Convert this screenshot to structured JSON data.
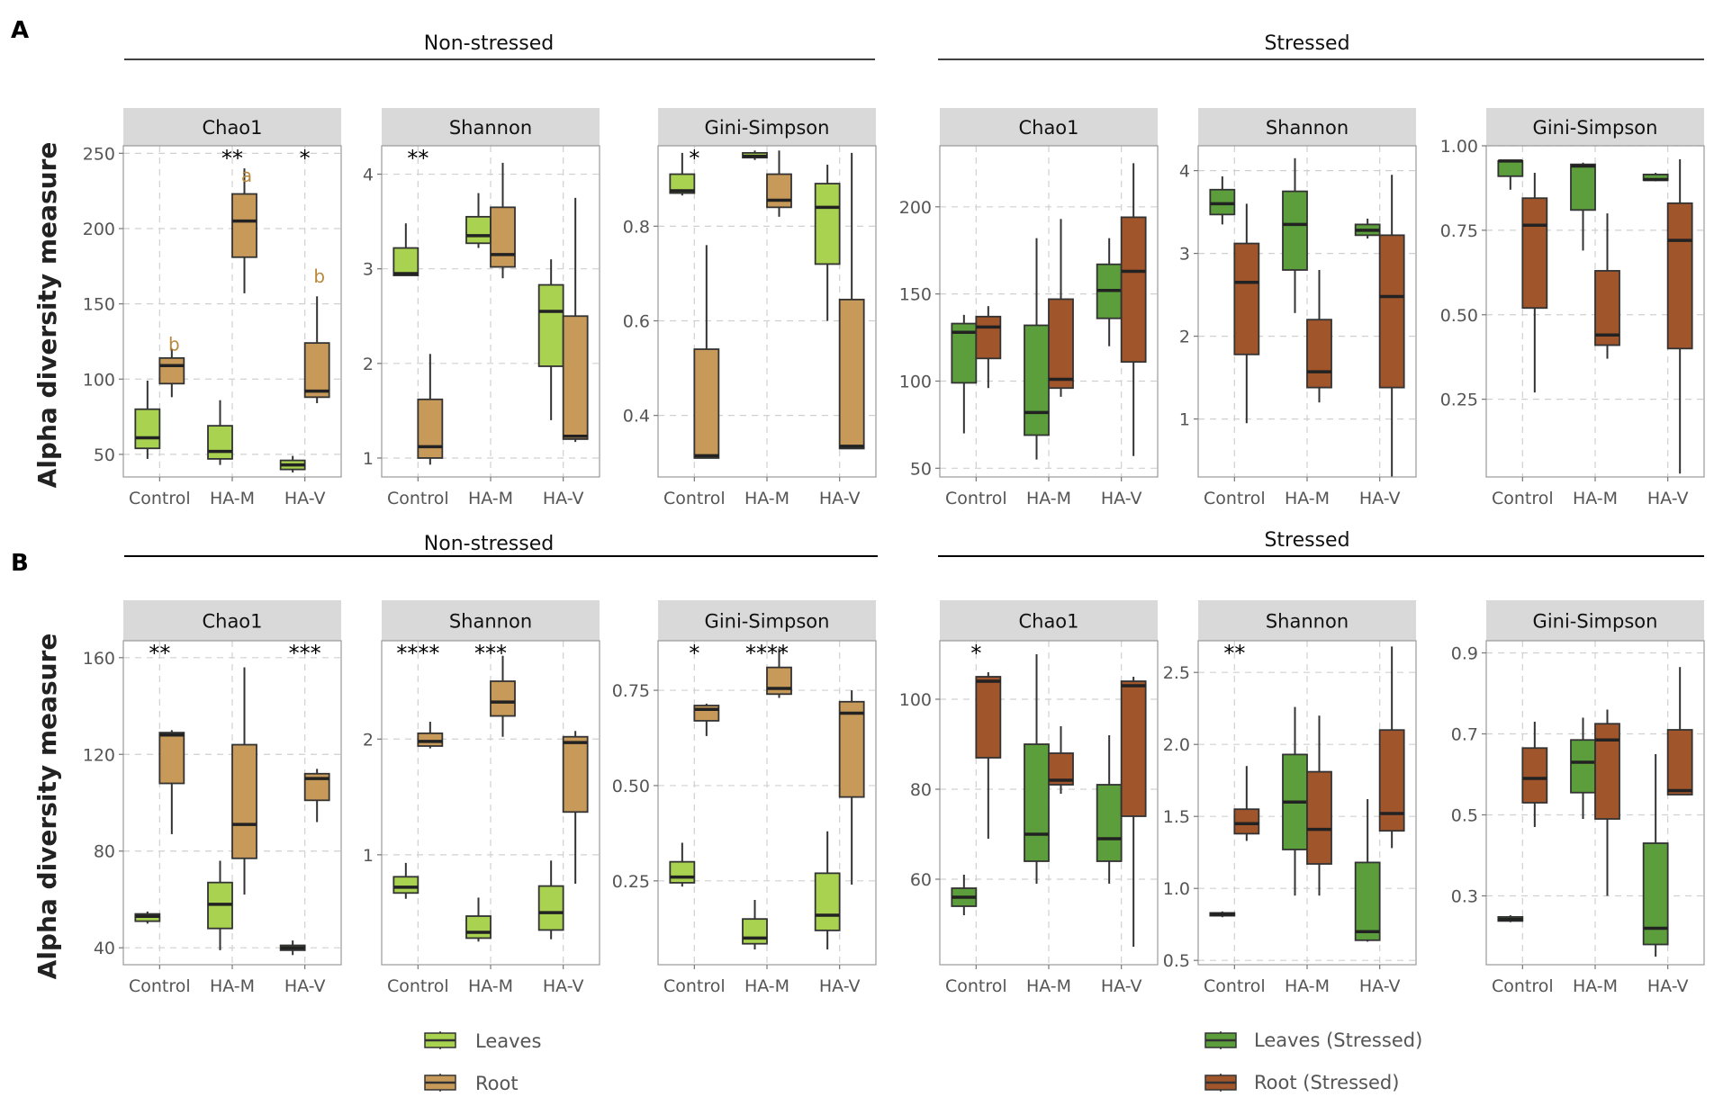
{
  "figure": {
    "row_labels": [
      "A",
      "B"
    ],
    "y_axis_title": "Alpha diversity measure",
    "group_titles": {
      "non_stressed": "Non-stressed",
      "stressed": "Stressed"
    }
  },
  "colors": {
    "leaves": "#a8d24f",
    "root": "#c89a5a",
    "leaves_stressed": "#5b9e3b",
    "root_stressed": "#a0552b",
    "strip": "#d9d9d9",
    "annotation_letter": "#b8893c"
  },
  "legends": {
    "non_stressed": [
      {
        "label": "Leaves",
        "color_key": "leaves"
      },
      {
        "label": "Root",
        "color_key": "root"
      }
    ],
    "stressed": [
      {
        "label": "Leaves (Stressed)",
        "color_key": "leaves_stressed"
      },
      {
        "label": "Root (Stressed)",
        "color_key": "root_stressed"
      }
    ]
  },
  "chart_data": [
    {
      "type": "boxplot",
      "row": "A",
      "group": "Non-stressed",
      "title": "Chao1",
      "categories": [
        "Control",
        "HA-M",
        "HA-V"
      ],
      "ylim": [
        35,
        255
      ],
      "yticks": [
        50,
        100,
        150,
        200,
        250
      ],
      "tick_labels": [
        "50",
        "100",
        "150",
        "200",
        "250"
      ],
      "series": [
        {
          "name": "Leaves",
          "color_key": "leaves",
          "boxes": [
            [
              47,
              54,
              61,
              80,
              99
            ],
            [
              43,
              47,
              52,
              69,
              86
            ],
            [
              38,
              40,
              43,
              46,
              49
            ]
          ]
        },
        {
          "name": "Root",
          "color_key": "root",
          "boxes": [
            [
              88,
              97,
              109,
              114,
              120
            ],
            [
              157,
              181,
              205,
              223,
              240
            ],
            [
              84,
              88,
              92,
              124,
              155
            ]
          ]
        }
      ],
      "signif": [
        {
          "cat": 1,
          "label": "**"
        },
        {
          "cat": 2,
          "label": "*"
        }
      ],
      "letters": [
        {
          "cat": 0,
          "label": "b",
          "y": 119
        },
        {
          "cat": 1,
          "label": "a",
          "y": 231
        },
        {
          "cat": 2,
          "label": "b",
          "y": 164
        }
      ]
    },
    {
      "type": "boxplot",
      "row": "A",
      "group": "Non-stressed",
      "title": "Shannon",
      "categories": [
        "Control",
        "HA-M",
        "HA-V"
      ],
      "ylim": [
        0.8,
        4.3
      ],
      "yticks": [
        1,
        2,
        3,
        4
      ],
      "tick_labels": [
        "1",
        "2",
        "3",
        "4"
      ],
      "series": [
        {
          "name": "Leaves",
          "color_key": "leaves",
          "boxes": [
            [
              2.93,
              2.93,
              2.95,
              3.22,
              3.48
            ],
            [
              3.22,
              3.27,
              3.35,
              3.55,
              3.8
            ],
            [
              1.4,
              1.97,
              2.55,
              2.83,
              3.1
            ]
          ]
        },
        {
          "name": "Root",
          "color_key": "root",
          "boxes": [
            [
              0.93,
              1.0,
              1.12,
              1.62,
              2.1
            ],
            [
              2.9,
              3.02,
              3.15,
              3.65,
              4.12
            ],
            [
              1.17,
              1.2,
              1.23,
              2.5,
              3.75
            ]
          ]
        }
      ],
      "signif": [
        {
          "cat": 0,
          "label": "**"
        }
      ],
      "letters": []
    },
    {
      "type": "boxplot",
      "row": "A",
      "group": "Non-stressed",
      "title": "Gini-Simpson",
      "categories": [
        "Control",
        "HA-M",
        "HA-V"
      ],
      "ylim": [
        0.27,
        0.97
      ],
      "yticks": [
        0.4,
        0.6,
        0.8
      ],
      "tick_labels": [
        "0.4",
        "0.6",
        "0.8"
      ],
      "series": [
        {
          "name": "Leaves",
          "color_key": "leaves",
          "boxes": [
            [
              0.865,
              0.87,
              0.875,
              0.91,
              0.955
            ],
            [
              0.94,
              0.945,
              0.948,
              0.955,
              0.96
            ],
            [
              0.6,
              0.72,
              0.84,
              0.89,
              0.93
            ]
          ]
        },
        {
          "name": "Root",
          "color_key": "root",
          "boxes": [
            [
              0.31,
              0.31,
              0.315,
              0.54,
              0.76
            ],
            [
              0.82,
              0.84,
              0.855,
              0.91,
              0.96
            ],
            [
              0.33,
              0.33,
              0.335,
              0.645,
              0.955
            ]
          ]
        }
      ],
      "signif": [
        {
          "cat": 0,
          "label": "*"
        }
      ],
      "letters": []
    },
    {
      "type": "boxplot",
      "row": "A",
      "group": "Stressed",
      "title": "Chao1",
      "categories": [
        "Control",
        "HA-M",
        "HA-V"
      ],
      "ylim": [
        45,
        235
      ],
      "yticks": [
        50,
        100,
        150,
        200
      ],
      "tick_labels": [
        "50",
        "100",
        "150",
        "200"
      ],
      "series": [
        {
          "name": "Leaves (Stressed)",
          "color_key": "leaves_stressed",
          "boxes": [
            [
              70,
              99,
              128,
              133,
              138
            ],
            [
              55,
              69,
              82,
              132,
              182
            ],
            [
              120,
              136,
              152,
              167,
              182
            ]
          ]
        },
        {
          "name": "Root (Stressed)",
          "color_key": "root_stressed",
          "boxes": [
            [
              96,
              113,
              131,
              137,
              143
            ],
            [
              91,
              96,
              101,
              147,
              193
            ],
            [
              57,
              111,
              163,
              194,
              225
            ]
          ]
        }
      ],
      "signif": [],
      "letters": []
    },
    {
      "type": "boxplot",
      "row": "A",
      "group": "Stressed",
      "title": "Shannon",
      "categories": [
        "Control",
        "HA-M",
        "HA-V"
      ],
      "ylim": [
        0.3,
        4.3
      ],
      "yticks": [
        1,
        2,
        3,
        4
      ],
      "tick_labels": [
        "1",
        "2",
        "3",
        "4"
      ],
      "series": [
        {
          "name": "Leaves (Stressed)",
          "color_key": "leaves_stressed",
          "boxes": [
            [
              3.35,
              3.47,
              3.6,
              3.77,
              3.93
            ],
            [
              2.28,
              2.8,
              3.35,
              3.75,
              4.15
            ],
            [
              3.18,
              3.22,
              3.28,
              3.35,
              3.42
            ]
          ]
        },
        {
          "name": "Root (Stressed)",
          "color_key": "root_stressed",
          "boxes": [
            [
              0.95,
              1.78,
              2.65,
              3.12,
              3.6
            ],
            [
              1.2,
              1.38,
              1.57,
              2.2,
              2.8
            ],
            [
              0.3,
              1.38,
              2.48,
              3.22,
              3.95
            ]
          ]
        }
      ],
      "signif": [],
      "letters": []
    },
    {
      "type": "boxplot",
      "row": "A",
      "group": "Stressed",
      "title": "Gini-Simpson",
      "categories": [
        "Control",
        "HA-M",
        "HA-V"
      ],
      "ylim": [
        0.02,
        1.0
      ],
      "yticks": [
        0.25,
        0.5,
        0.75,
        1.0
      ],
      "tick_labels": [
        "0.25",
        "0.50",
        "0.75",
        "1.00"
      ],
      "series": [
        {
          "name": "Leaves (Stressed)",
          "color_key": "leaves_stressed",
          "boxes": [
            [
              0.87,
              0.91,
              0.955,
              0.955,
              0.955
            ],
            [
              0.69,
              0.81,
              0.94,
              0.945,
              0.95
            ],
            [
              0.895,
              0.898,
              0.9,
              0.915,
              0.92
            ]
          ]
        },
        {
          "name": "Root (Stressed)",
          "color_key": "root_stressed",
          "boxes": [
            [
              0.27,
              0.52,
              0.765,
              0.845,
              0.92
            ],
            [
              0.37,
              0.41,
              0.44,
              0.63,
              0.8
            ],
            [
              0.03,
              0.4,
              0.72,
              0.83,
              0.96
            ]
          ]
        }
      ],
      "signif": [],
      "letters": []
    },
    {
      "type": "boxplot",
      "row": "B",
      "group": "Non-stressed",
      "title": "Chao1",
      "categories": [
        "Control",
        "HA-M",
        "HA-V"
      ],
      "ylim": [
        33,
        167
      ],
      "yticks": [
        40,
        80,
        120,
        160
      ],
      "tick_labels": [
        "40",
        "80",
        "120",
        "160"
      ],
      "series": [
        {
          "name": "Leaves",
          "color_key": "leaves",
          "boxes": [
            [
              50,
              51,
              53,
              54,
              55
            ],
            [
              39,
              48,
              58,
              67,
              76
            ],
            [
              37,
              39,
              40,
              41,
              43
            ]
          ]
        },
        {
          "name": "Root",
          "color_key": "root",
          "boxes": [
            [
              87,
              108,
              128,
              129,
              130
            ],
            [
              62,
              77,
              91,
              124,
              156
            ],
            [
              92,
              101,
              110,
              112,
              114
            ]
          ]
        }
      ],
      "signif": [
        {
          "cat": 0,
          "label": "**"
        },
        {
          "cat": 2,
          "label": "***"
        }
      ],
      "letters": []
    },
    {
      "type": "boxplot",
      "row": "B",
      "group": "Non-stressed",
      "title": "Shannon",
      "categories": [
        "Control",
        "HA-M",
        "HA-V"
      ],
      "ylim": [
        0.05,
        2.85
      ],
      "yticks": [
        1,
        2
      ],
      "tick_labels": [
        "1",
        "2"
      ],
      "series": [
        {
          "name": "Leaves",
          "color_key": "leaves",
          "boxes": [
            [
              0.62,
              0.67,
              0.72,
              0.81,
              0.93
            ],
            [
              0.25,
              0.28,
              0.33,
              0.47,
              0.63
            ],
            [
              0.27,
              0.35,
              0.5,
              0.73,
              0.95
            ]
          ]
        },
        {
          "name": "Root",
          "color_key": "root",
          "boxes": [
            [
              1.92,
              1.94,
              1.98,
              2.05,
              2.15
            ],
            [
              2.02,
              2.2,
              2.32,
              2.5,
              2.72
            ],
            [
              0.75,
              1.37,
              1.97,
              2.02,
              2.07
            ]
          ]
        }
      ],
      "signif": [
        {
          "cat": 0,
          "label": "****"
        },
        {
          "cat": 1,
          "label": "***"
        }
      ],
      "letters": []
    },
    {
      "type": "boxplot",
      "row": "B",
      "group": "Non-stressed",
      "title": "Gini-Simpson",
      "categories": [
        "Control",
        "HA-M",
        "HA-V"
      ],
      "ylim": [
        0.03,
        0.88
      ],
      "yticks": [
        0.25,
        0.5,
        0.75
      ],
      "tick_labels": [
        "0.25",
        "0.50",
        "0.75"
      ],
      "series": [
        {
          "name": "Leaves",
          "color_key": "leaves",
          "boxes": [
            [
              0.235,
              0.245,
              0.26,
              0.3,
              0.35
            ],
            [
              0.07,
              0.085,
              0.1,
              0.15,
              0.2
            ],
            [
              0.07,
              0.12,
              0.16,
              0.27,
              0.38
            ]
          ]
        },
        {
          "name": "Root",
          "color_key": "root",
          "boxes": [
            [
              0.63,
              0.67,
              0.7,
              0.71,
              0.715
            ],
            [
              0.73,
              0.74,
              0.755,
              0.81,
              0.86
            ],
            [
              0.24,
              0.47,
              0.69,
              0.72,
              0.75
            ]
          ]
        }
      ],
      "signif": [
        {
          "cat": 0,
          "label": "*"
        },
        {
          "cat": 1,
          "label": "****"
        }
      ],
      "letters": []
    },
    {
      "type": "boxplot",
      "row": "B",
      "group": "Stressed",
      "title": "Chao1",
      "categories": [
        "Control",
        "HA-M",
        "HA-V"
      ],
      "ylim": [
        41,
        113
      ],
      "yticks": [
        60,
        80,
        100
      ],
      "tick_labels": [
        "60",
        "80",
        "100"
      ],
      "series": [
        {
          "name": "Leaves (Stressed)",
          "color_key": "leaves_stressed",
          "boxes": [
            [
              52,
              54,
              56,
              58,
              61
            ],
            [
              59,
              64,
              70,
              90,
              110
            ],
            [
              59,
              64,
              69,
              81,
              92
            ]
          ]
        },
        {
          "name": "Root (Stressed)",
          "color_key": "root_stressed",
          "boxes": [
            [
              69,
              87,
              104,
              105,
              106
            ],
            [
              79,
              81,
              82,
              88,
              94
            ],
            [
              45,
              74,
              103,
              104,
              105
            ]
          ]
        }
      ],
      "signif": [
        {
          "cat": 0,
          "label": "*"
        }
      ],
      "letters": []
    },
    {
      "type": "boxplot",
      "row": "B",
      "group": "Stressed",
      "title": "Shannon",
      "categories": [
        "Control",
        "HA-M",
        "HA-V"
      ],
      "ylim": [
        0.47,
        2.72
      ],
      "yticks": [
        0.5,
        1.0,
        1.5,
        2.0,
        2.5
      ],
      "tick_labels": [
        "0.5",
        "1.0",
        "1.5",
        "2.0",
        "2.5"
      ],
      "series": [
        {
          "name": "Leaves (Stressed)",
          "color_key": "leaves_stressed",
          "boxes": [
            [
              0.8,
              0.81,
              0.82,
              0.83,
              0.84
            ],
            [
              0.95,
              1.27,
              1.6,
              1.93,
              2.26
            ],
            [
              0.63,
              0.64,
              0.7,
              1.18,
              1.62
            ]
          ]
        },
        {
          "name": "Root (Stressed)",
          "color_key": "root_stressed",
          "boxes": [
            [
              1.33,
              1.38,
              1.45,
              1.55,
              1.85
            ],
            [
              0.95,
              1.17,
              1.41,
              1.81,
              2.2
            ],
            [
              1.28,
              1.4,
              1.52,
              2.1,
              2.68
            ]
          ]
        }
      ],
      "signif": [
        {
          "cat": 0,
          "label": "**"
        }
      ],
      "letters": []
    },
    {
      "type": "boxplot",
      "row": "B",
      "group": "Stressed",
      "title": "Gini-Simpson",
      "categories": [
        "Control",
        "HA-M",
        "HA-V"
      ],
      "ylim": [
        0.13,
        0.93
      ],
      "yticks": [
        0.3,
        0.5,
        0.7,
        0.9
      ],
      "tick_labels": [
        "0.3",
        "0.5",
        "0.7",
        "0.9"
      ],
      "series": [
        {
          "name": "Leaves (Stressed)",
          "color_key": "leaves_stressed",
          "boxes": [
            [
              0.235,
              0.238,
              0.242,
              0.248,
              0.252
            ],
            [
              0.49,
              0.555,
              0.63,
              0.685,
              0.74
            ],
            [
              0.15,
              0.18,
              0.22,
              0.43,
              0.65
            ]
          ]
        },
        {
          "name": "Root (Stressed)",
          "color_key": "root_stressed",
          "boxes": [
            [
              0.47,
              0.53,
              0.59,
              0.665,
              0.73
            ],
            [
              0.3,
              0.49,
              0.685,
              0.725,
              0.76
            ],
            [
              0.55,
              0.55,
              0.56,
              0.71,
              0.865
            ]
          ]
        }
      ],
      "signif": [],
      "letters": []
    }
  ]
}
